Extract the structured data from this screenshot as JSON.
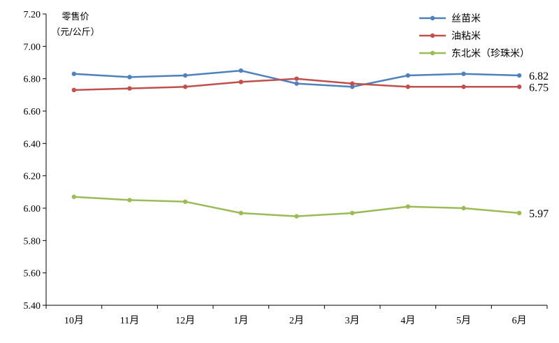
{
  "chart_data": {
    "type": "line",
    "ylabel_lines": [
      "零售价",
      "（元/公斤）"
    ],
    "categories": [
      "10月",
      "11月",
      "12月",
      "1月",
      "2月",
      "3月",
      "4月",
      "5月",
      "6月"
    ],
    "ylim": [
      5.4,
      7.2
    ],
    "yticks": [
      "5.40",
      "5.60",
      "5.80",
      "6.00",
      "6.20",
      "6.40",
      "6.60",
      "6.80",
      "7.00",
      "7.20"
    ],
    "grid": false,
    "legend_position": "top-right",
    "series": [
      {
        "name": "丝苗米",
        "color": "#4F81BD",
        "values": [
          6.83,
          6.81,
          6.82,
          6.85,
          6.77,
          6.75,
          6.82,
          6.83,
          6.82
        ],
        "end_label": "6.82"
      },
      {
        "name": "油粘米",
        "color": "#C0504D",
        "values": [
          6.73,
          6.74,
          6.75,
          6.78,
          6.8,
          6.77,
          6.75,
          6.75,
          6.75
        ],
        "end_label": "6.75"
      },
      {
        "name": "东北米（珍珠米）",
        "color": "#9BBB59",
        "values": [
          6.07,
          6.05,
          6.04,
          5.97,
          5.95,
          5.97,
          6.01,
          6.0,
          5.97
        ],
        "end_label": "5.97"
      }
    ]
  }
}
